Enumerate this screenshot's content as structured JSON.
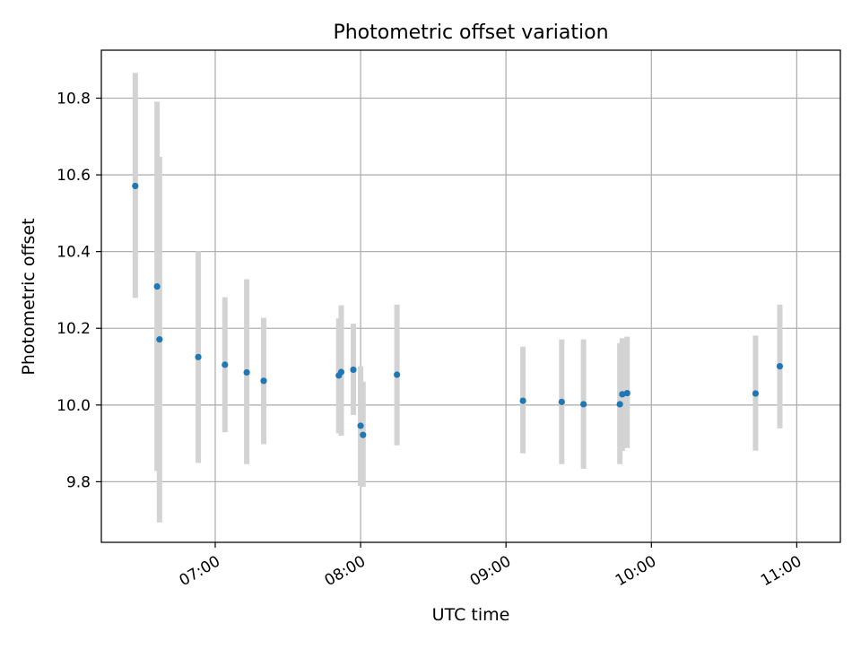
{
  "chart_data": {
    "type": "scatter",
    "title": "Photometric offset variation",
    "xlabel": "UTC time",
    "ylabel": "Photometric offset",
    "x_type": "time",
    "xlim": [
      "06:13",
      "11:18"
    ],
    "ylim": [
      9.642,
      10.925
    ],
    "grid": true,
    "x_ticks": [
      "07:00",
      "08:00",
      "09:00",
      "10:00",
      "11:00"
    ],
    "y_ticks": [
      9.8,
      10.0,
      10.2,
      10.4,
      10.6,
      10.8
    ],
    "marker_color": "#1f77b4",
    "errorbar_color": "#d3d3d3",
    "points": [
      {
        "t": "06:27",
        "y": 10.571,
        "lo": 10.279,
        "hi": 10.866
      },
      {
        "t": "06:36",
        "y": 10.309,
        "lo": 9.828,
        "hi": 10.791
      },
      {
        "t": "06:37",
        "y": 10.171,
        "lo": 9.694,
        "hi": 10.647
      },
      {
        "t": "06:53",
        "y": 10.125,
        "lo": 9.849,
        "hi": 10.401
      },
      {
        "t": "07:04",
        "y": 10.105,
        "lo": 9.929,
        "hi": 10.281
      },
      {
        "t": "07:13",
        "y": 10.085,
        "lo": 9.846,
        "hi": 10.328
      },
      {
        "t": "07:20",
        "y": 10.063,
        "lo": 9.898,
        "hi": 10.227
      },
      {
        "t": "07:51",
        "y": 10.077,
        "lo": 9.926,
        "hi": 10.226
      },
      {
        "t": "07:52",
        "y": 10.086,
        "lo": 9.92,
        "hi": 10.26
      },
      {
        "t": "07:57",
        "y": 10.092,
        "lo": 9.974,
        "hi": 10.212
      },
      {
        "t": "08:00",
        "y": 9.946,
        "lo": 9.789,
        "hi": 10.101
      },
      {
        "t": "08:01",
        "y": 9.922,
        "lo": 9.787,
        "hi": 10.061
      },
      {
        "t": "08:15",
        "y": 10.079,
        "lo": 9.895,
        "hi": 10.262
      },
      {
        "t": "09:07",
        "y": 10.011,
        "lo": 9.874,
        "hi": 10.152
      },
      {
        "t": "09:23",
        "y": 10.008,
        "lo": 9.846,
        "hi": 10.171
      },
      {
        "t": "09:32",
        "y": 10.002,
        "lo": 9.834,
        "hi": 10.171
      },
      {
        "t": "09:47",
        "y": 10.002,
        "lo": 9.846,
        "hi": 10.161
      },
      {
        "t": "09:48",
        "y": 10.028,
        "lo": 9.88,
        "hi": 10.174
      },
      {
        "t": "09:50",
        "y": 10.031,
        "lo": 9.888,
        "hi": 10.178
      },
      {
        "t": "10:43",
        "y": 10.03,
        "lo": 9.881,
        "hi": 10.181
      },
      {
        "t": "10:53",
        "y": 10.101,
        "lo": 9.939,
        "hi": 10.262
      }
    ]
  }
}
